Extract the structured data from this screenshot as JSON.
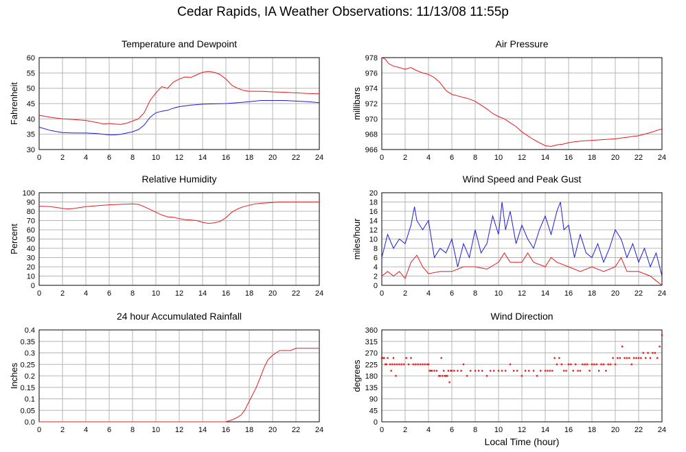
{
  "page": {
    "title": "Cedar Rapids, IA Weather Observations: 11/13/08 11:55p"
  },
  "shared_xlabel": "Local Time (hour)",
  "chart_data": [
    {
      "type": "line",
      "title": "Temperature and Dewpoint",
      "xlabel": "",
      "ylabel": "Fahrenheit",
      "xlim": [
        0,
        24
      ],
      "ylim": [
        30,
        60
      ],
      "xticks": [
        0,
        2,
        4,
        6,
        8,
        10,
        12,
        14,
        16,
        18,
        20,
        22,
        24
      ],
      "yticks": [
        30,
        35,
        40,
        45,
        50,
        55,
        60
      ],
      "grid": true,
      "series": [
        {
          "color": "#e8191d",
          "x": [
            0,
            1,
            2,
            3,
            4,
            5,
            5.5,
            6,
            6.5,
            7,
            7.5,
            8,
            8.5,
            9,
            9.5,
            10,
            10.5,
            11,
            11.5,
            12,
            12.5,
            13,
            13.5,
            14,
            14.5,
            15,
            15.5,
            16,
            16.5,
            17,
            17.5,
            18,
            19,
            20,
            21,
            22,
            23,
            24
          ],
          "y": [
            41.2,
            40.5,
            40,
            39.8,
            39.5,
            38.8,
            38.3,
            38.5,
            38.3,
            38.2,
            38.6,
            39.3,
            40,
            42,
            46,
            48.5,
            50.5,
            50,
            52,
            53,
            53.7,
            53.5,
            54.4,
            55.2,
            55.5,
            55.2,
            54.5,
            53,
            51,
            50,
            49.3,
            49,
            49,
            48.8,
            48.7,
            48.5,
            48.3,
            48.2
          ]
        },
        {
          "color": "#1b1bdc",
          "x": [
            0,
            1,
            2,
            3,
            4,
            5,
            5.5,
            6,
            6.5,
            7,
            7.5,
            8,
            8.5,
            9,
            9.5,
            10,
            10.5,
            11,
            11.5,
            12,
            13,
            14,
            15,
            16,
            17,
            18,
            19,
            20,
            21,
            22,
            23,
            24
          ],
          "y": [
            37.3,
            36.2,
            35.5,
            35.4,
            35.4,
            35.2,
            35,
            34.8,
            34.8,
            35,
            35.4,
            35.8,
            36.5,
            38,
            40.5,
            42,
            42.5,
            42.8,
            43.5,
            44,
            44.5,
            44.8,
            44.9,
            45,
            45.3,
            45.6,
            46,
            46,
            46,
            45.8,
            45.6,
            45.3
          ]
        }
      ]
    },
    {
      "type": "line",
      "title": "Air Pressure",
      "xlabel": "",
      "ylabel": "millibars",
      "xlim": [
        0,
        24
      ],
      "ylim": [
        966,
        978
      ],
      "xticks": [
        0,
        2,
        4,
        6,
        8,
        10,
        12,
        14,
        16,
        18,
        20,
        22,
        24
      ],
      "yticks": [
        966,
        968,
        970,
        972,
        974,
        976,
        978
      ],
      "grid": true,
      "series": [
        {
          "color": "#e8191d",
          "x": [
            0,
            0.3,
            0.6,
            1,
            1.5,
            2,
            2.5,
            3,
            3.5,
            4,
            4.5,
            5,
            5.5,
            6,
            6.5,
            7,
            7.5,
            8,
            8.5,
            9,
            9.5,
            10,
            10.5,
            11,
            11.5,
            12,
            12.5,
            13,
            13.5,
            14,
            14.5,
            15,
            15.5,
            16,
            16.5,
            17,
            18,
            19,
            20,
            21,
            22,
            23,
            24
          ],
          "y": [
            978,
            977.8,
            977.2,
            976.9,
            976.7,
            976.5,
            976.7,
            976.3,
            976,
            975.8,
            975.4,
            974.7,
            973.7,
            973.2,
            973,
            972.8,
            972.6,
            972.3,
            971.8,
            971.3,
            970.7,
            970.3,
            970,
            969.5,
            969,
            968.3,
            967.8,
            967.3,
            966.9,
            966.5,
            966.4,
            966.6,
            966.7,
            966.9,
            967.0,
            967.1,
            967.2,
            967.3,
            967.4,
            967.6,
            967.8,
            968.2,
            968.7
          ]
        }
      ]
    },
    {
      "type": "line",
      "title": "Relative Humidity",
      "xlabel": "",
      "ylabel": "Percent",
      "xlim": [
        0,
        24
      ],
      "ylim": [
        0,
        100
      ],
      "xticks": [
        0,
        2,
        4,
        6,
        8,
        10,
        12,
        14,
        16,
        18,
        20,
        22,
        24
      ],
      "yticks": [
        0,
        10,
        20,
        30,
        40,
        50,
        60,
        70,
        80,
        90,
        100
      ],
      "grid": true,
      "series": [
        {
          "color": "#e8191d",
          "x": [
            0,
            1,
            2,
            2.5,
            3,
            4,
            5,
            6,
            7,
            8,
            8.5,
            9,
            9.5,
            10,
            10.5,
            11,
            11.5,
            12,
            12.5,
            13,
            13.5,
            14,
            14.5,
            15,
            15.5,
            16,
            16.5,
            17,
            17.5,
            18,
            18.5,
            19,
            19.5,
            20,
            20.5,
            21,
            22,
            23,
            24
          ],
          "y": [
            85.5,
            85,
            83,
            82.5,
            83,
            85,
            86,
            87,
            87.5,
            88,
            87.5,
            85,
            82,
            79,
            76,
            74,
            73.5,
            72,
            71,
            70.5,
            70,
            68,
            67,
            67.5,
            69,
            73,
            79,
            82.5,
            85,
            86.5,
            88,
            88.5,
            89,
            89.5,
            90,
            90,
            90,
            90,
            90
          ]
        }
      ]
    },
    {
      "type": "line",
      "title": "Wind Speed and Peak Gust",
      "xlabel": "",
      "ylabel": "miles/hour",
      "xlim": [
        0,
        24
      ],
      "ylim": [
        0,
        20
      ],
      "xticks": [
        0,
        2,
        4,
        6,
        8,
        10,
        12,
        14,
        16,
        18,
        20,
        22,
        24
      ],
      "yticks": [
        0,
        2,
        4,
        6,
        8,
        10,
        12,
        14,
        16,
        18,
        20
      ],
      "grid": true,
      "series": [
        {
          "color": "#1b1bdc",
          "x": [
            0,
            0.5,
            1,
            1.5,
            2,
            2.5,
            2.8,
            3,
            3.5,
            4,
            4.5,
            5,
            5.5,
            6,
            6.5,
            7,
            7.5,
            8,
            8.5,
            9,
            9.5,
            10,
            10.3,
            10.6,
            11,
            11.5,
            12,
            12.5,
            13,
            13.5,
            14,
            14.5,
            15,
            15.3,
            15.6,
            16,
            16.5,
            17,
            17.5,
            18,
            18.5,
            19,
            19.5,
            20,
            20.5,
            21,
            21.5,
            22,
            22.5,
            23,
            23.5,
            24
          ],
          "y": [
            6,
            11,
            8,
            10,
            9,
            13,
            17,
            14,
            12,
            14,
            6,
            8,
            7,
            10,
            4,
            9,
            6,
            12,
            7,
            9,
            15,
            11,
            18,
            12,
            16,
            9,
            13,
            10,
            8,
            12,
            15,
            11,
            16,
            18,
            12,
            13,
            6,
            11,
            7,
            6,
            9,
            5,
            8,
            12,
            10,
            6,
            9,
            5,
            8,
            4,
            7,
            2
          ]
        },
        {
          "color": "#e8191d",
          "x": [
            0,
            0.5,
            1,
            1.5,
            2,
            2.5,
            3,
            3.5,
            4,
            5,
            6,
            7,
            8,
            9,
            10,
            10.5,
            11,
            12,
            12.5,
            13,
            14,
            14.5,
            15,
            16,
            17,
            18,
            19,
            20,
            20.5,
            21,
            22,
            23,
            23.5,
            24
          ],
          "y": [
            2,
            3,
            2,
            3,
            1.5,
            5,
            6.5,
            4,
            2.5,
            3,
            3,
            4,
            4,
            3.5,
            5,
            7,
            5,
            5,
            7,
            5,
            4,
            6,
            5,
            4,
            3,
            4,
            3,
            4,
            6,
            3,
            3,
            2,
            1,
            0
          ]
        }
      ]
    },
    {
      "type": "line",
      "title": "24 hour Accumulated Rainfall",
      "xlabel": "",
      "ylabel": "Inches",
      "xlim": [
        0,
        24
      ],
      "ylim": [
        0,
        0.4
      ],
      "xticks": [
        0,
        2,
        4,
        6,
        8,
        10,
        12,
        14,
        16,
        18,
        20,
        22,
        24
      ],
      "yticks": [
        "0.0",
        "0.05",
        "0.1",
        "0.15",
        "0.2",
        "0.25",
        "0.3",
        "0.35",
        "0.4"
      ],
      "grid": true,
      "series": [
        {
          "color": "#e8191d",
          "x": [
            0,
            16,
            16.3,
            16.6,
            17,
            17.3,
            17.6,
            18,
            18.3,
            18.6,
            19,
            19.3,
            19.6,
            20,
            20.3,
            20.6,
            21,
            21.5,
            22,
            22.5,
            23,
            24
          ],
          "y": [
            0,
            0,
            0.005,
            0.01,
            0.02,
            0.03,
            0.05,
            0.09,
            0.12,
            0.15,
            0.2,
            0.24,
            0.27,
            0.29,
            0.3,
            0.31,
            0.31,
            0.31,
            0.32,
            0.32,
            0.32,
            0.32
          ]
        }
      ]
    },
    {
      "type": "scatter",
      "title": "Wind Direction",
      "xlabel": "Local Time (hour)",
      "ylabel": "degrees",
      "xlim": [
        0,
        24
      ],
      "ylim": [
        0,
        360
      ],
      "xticks": [
        0,
        2,
        4,
        6,
        8,
        10,
        12,
        14,
        16,
        18,
        20,
        22,
        24
      ],
      "yticks": [
        0,
        45,
        90,
        135,
        180,
        225,
        270,
        315,
        360
      ],
      "grid": true,
      "series": [
        {
          "color": "#e8191d",
          "x": [
            0,
            0.1,
            0.2,
            0.3,
            0.4,
            0.5,
            0.7,
            0.8,
            0.9,
            1.0,
            1.1,
            1.2,
            1.3,
            1.5,
            1.7,
            1.9,
            2.1,
            2.3,
            2.5,
            2.7,
            2.9,
            3.1,
            3.3,
            3.5,
            3.7,
            3.9,
            4.0,
            4.1,
            4.2,
            4.3,
            4.5,
            4.7,
            4.9,
            5.0,
            5.1,
            5.2,
            5.3,
            5.4,
            5.5,
            5.6,
            5.7,
            5.8,
            5.9,
            6.0,
            6.2,
            6.5,
            6.8,
            7.0,
            7.3,
            7.6,
            8.0,
            8.3,
            8.6,
            9.0,
            9.3,
            9.6,
            10.0,
            10.3,
            10.6,
            11.0,
            11.3,
            11.6,
            12.0,
            12.3,
            12.6,
            13.0,
            13.3,
            13.6,
            14.0,
            14.2,
            14.4,
            14.6,
            14.8,
            15.0,
            15.2,
            15.4,
            15.6,
            15.8,
            16.0,
            16.2,
            16.4,
            16.6,
            16.8,
            17.0,
            17.2,
            17.4,
            17.6,
            17.8,
            18.0,
            18.2,
            18.4,
            18.6,
            18.8,
            19.0,
            19.2,
            19.4,
            19.6,
            19.8,
            20.0,
            20.2,
            20.4,
            20.6,
            20.8,
            21.0,
            21.2,
            21.4,
            21.6,
            21.8,
            22.0,
            22.2,
            22.4,
            22.6,
            22.8,
            23.0,
            23.2,
            23.4,
            23.6,
            23.8,
            24.0
          ],
          "y": [
            250,
            250,
            250,
            225,
            225,
            250,
            225,
            200,
            225,
            250,
            225,
            180,
            225,
            225,
            225,
            225,
            250,
            225,
            250,
            225,
            225,
            225,
            225,
            225,
            225,
            225,
            225,
            200,
            200,
            200,
            200,
            200,
            180,
            180,
            250,
            180,
            200,
            180,
            180,
            180,
            200,
            155,
            200,
            200,
            200,
            200,
            200,
            225,
            180,
            200,
            200,
            200,
            200,
            180,
            200,
            200,
            200,
            200,
            200,
            225,
            200,
            200,
            180,
            200,
            200,
            200,
            180,
            200,
            200,
            200,
            200,
            200,
            250,
            225,
            250,
            225,
            200,
            200,
            225,
            225,
            200,
            225,
            200,
            200,
            225,
            225,
            225,
            200,
            225,
            225,
            225,
            200,
            225,
            225,
            200,
            225,
            225,
            250,
            225,
            250,
            250,
            295,
            250,
            250,
            250,
            225,
            250,
            250,
            250,
            250,
            270,
            250,
            270,
            250,
            270,
            270,
            250,
            295,
            340
          ]
        }
      ]
    }
  ]
}
